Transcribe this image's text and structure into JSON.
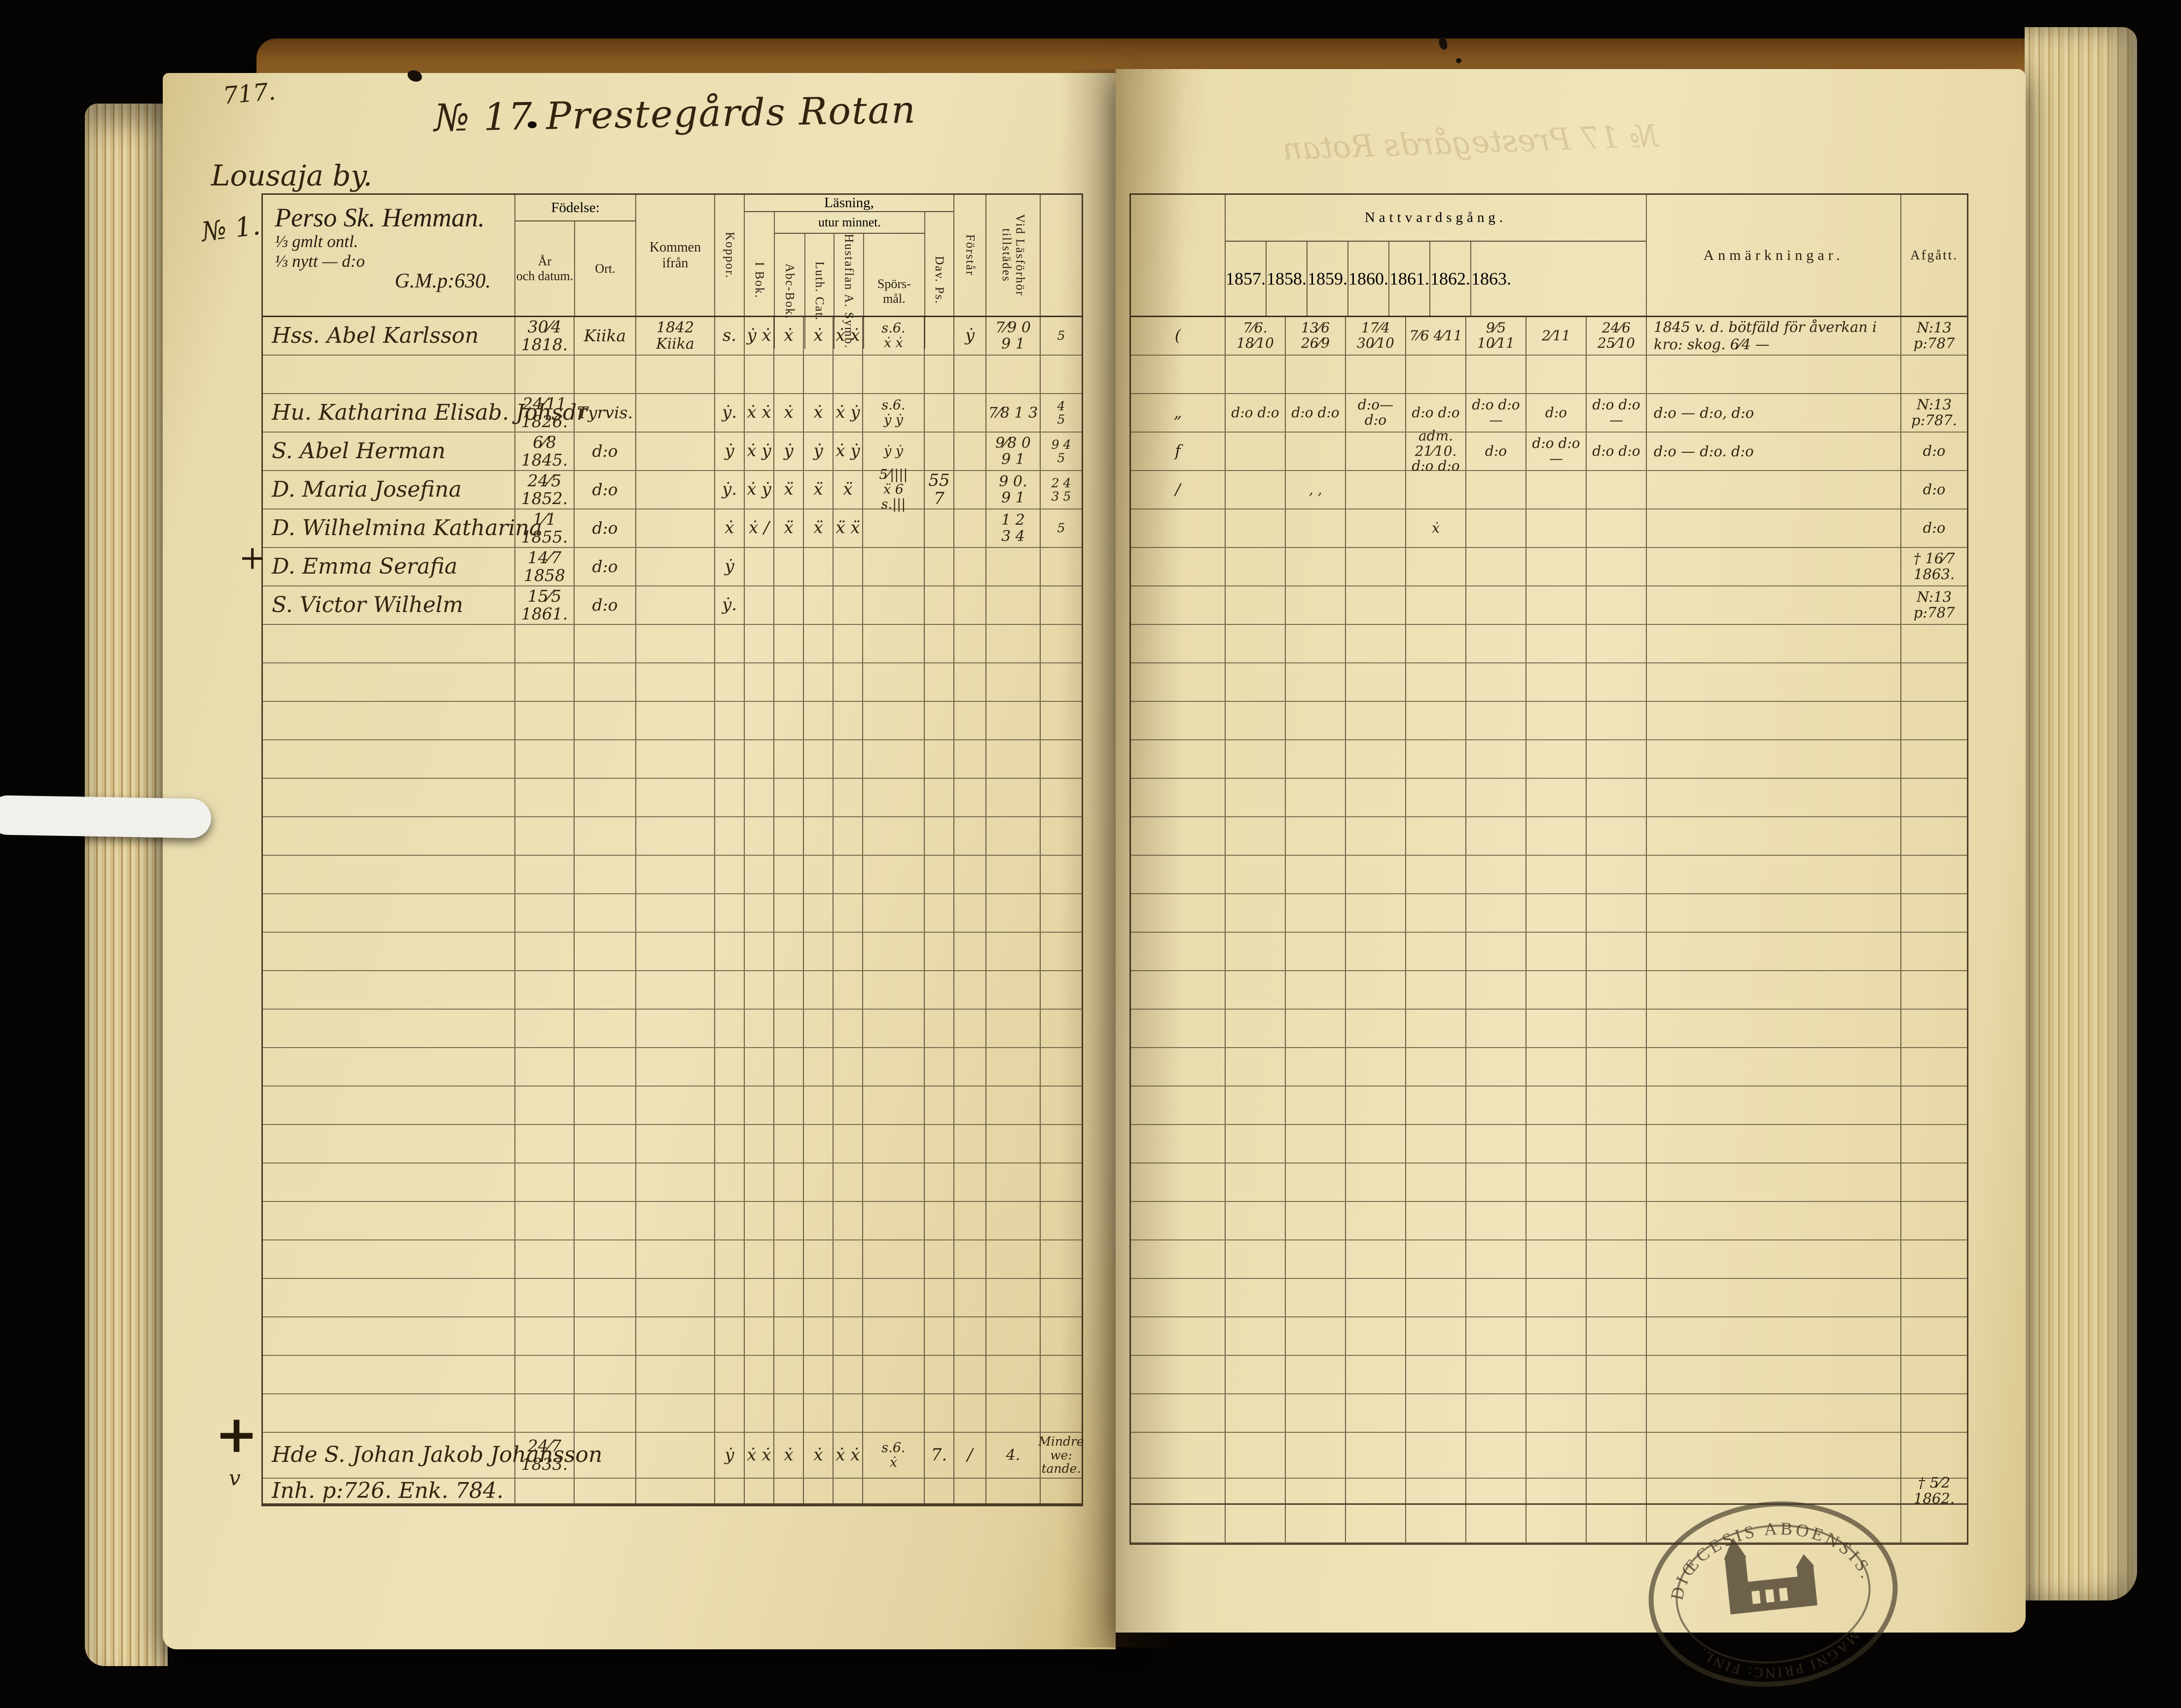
{
  "meta": {
    "page_no": "717.",
    "title": "№ 17 Prestegårds Rotan",
    "bleedthrough": "№ 17 Prestegårds Rotan",
    "village": "Lousaja by.",
    "margin_no": "№ 1.",
    "cross_emma": "+",
    "cross_johan": "+",
    "v_mark": "v"
  },
  "household": {
    "name": "Perso Sk. Hemman.",
    "share1": "⅓ gmlt  ontl.",
    "share2": "⅓ nytt — d:o",
    "ref": "G.M.p:630."
  },
  "headers": {
    "fodelse": "Födelse:",
    "ar_datum": "År\noch datum.",
    "ort": "Ort.",
    "kommen": "Kommen ifrån",
    "koppor": "Koppor.",
    "lasning": "Läsning,",
    "i_bok": "I Bok.",
    "utur": "utur minnet.",
    "abc": "Abc-Bok.",
    "luth": "Luth. Cat.",
    "hustaflan": "Hustaflan A. Symb.",
    "sporsmal": "Spörs-\nmål.",
    "dav": "Dav. Ps.",
    "forstar": "Förstår",
    "vidlas": "Vid Läsförhör\ntillstädes",
    "nattvard": "Nattvardsgång.",
    "years": [
      "1857.",
      "1858.",
      "1859.",
      "1860.",
      "1861.",
      "1862.",
      "1863."
    ],
    "anm": "Anmärkningar.",
    "afgatt": "Afgått."
  },
  "left_rows": [
    [
      "Hss. Abel Karlsson",
      "30⁄4 1818.",
      "Kiika",
      "1842\nKiika",
      "s.",
      "ẏ ẋ",
      "ẋ",
      "ẋ",
      "ẋ ẋ",
      "s.6.\nẋ  ẋ",
      "",
      "ẏ",
      "7⁄9 0\n9 1",
      "5"
    ],
    [
      "",
      "",
      "",
      "",
      "",
      "",
      "",
      "",
      "",
      "",
      "",
      "",
      "",
      ""
    ],
    [
      "Hu. Katharina Elisab. Johsdr",
      "24⁄11 1826.",
      "Tyrvis.",
      "",
      "ẏ.",
      "ẋ ẋ",
      "ẋ",
      "ẋ",
      "ẋ ẏ",
      "s.6.\nẏ  ẏ",
      "",
      "",
      "7⁄8 1 3",
      "4\n5"
    ],
    [
      "S. Abel Herman",
      "6⁄8 1845.",
      "d:o",
      "",
      "ẏ",
      "ẋ ẏ",
      "ẏ",
      "ẏ",
      "ẋ ẏ",
      "ẏ  ẏ",
      "",
      "",
      "9⁄8 0\n9 1",
      "9 4\n5"
    ],
    [
      "D. Maria Josefina",
      "24⁄5 1852.",
      "d:o",
      "",
      "ẏ.",
      "ẋ ẏ",
      "ẍ",
      "ẍ",
      "ẍ",
      "5⁄||||\nẍ  6\ns.|||",
      "55\n7",
      "",
      "9 0.\n9 1",
      "2 4\n3 5"
    ],
    [
      "D. Wilhelmina Katharina",
      "1⁄1 1855.",
      "d:o",
      "",
      "ẋ",
      "ẋ /",
      "ẍ",
      "ẍ",
      "ẍ ẍ",
      "",
      "",
      "",
      "1 2\n3 4",
      "5"
    ],
    [
      "D. Emma Serafia",
      "14⁄7 1858",
      "d:o",
      "",
      "ẏ",
      "",
      "",
      "",
      "",
      "",
      "",
      "",
      "",
      ""
    ],
    [
      "S. Victor Wilhelm",
      "15⁄5 1861.",
      "d:o",
      "",
      "ẏ.",
      "",
      "",
      "",
      "",
      "",
      "",
      "",
      "",
      ""
    ],
    [
      "",
      "",
      "",
      "",
      "",
      "",
      "",
      "",
      "",
      "",
      "",
      "",
      "",
      ""
    ],
    [
      "",
      "",
      "",
      "",
      "",
      "",
      "",
      "",
      "",
      "",
      "",
      "",
      "",
      ""
    ],
    [
      "",
      "",
      "",
      "",
      "",
      "",
      "",
      "",
      "",
      "",
      "",
      "",
      "",
      ""
    ],
    [
      "",
      "",
      "",
      "",
      "",
      "",
      "",
      "",
      "",
      "",
      "",
      "",
      "",
      ""
    ],
    [
      "",
      "",
      "",
      "",
      "",
      "",
      "",
      "",
      "",
      "",
      "",
      "",
      "",
      ""
    ],
    [
      "",
      "",
      "",
      "",
      "",
      "",
      "",
      "",
      "",
      "",
      "",
      "",
      "",
      ""
    ],
    [
      "",
      "",
      "",
      "",
      "",
      "",
      "",
      "",
      "",
      "",
      "",
      "",
      "",
      ""
    ],
    [
      "",
      "",
      "",
      "",
      "",
      "",
      "",
      "",
      "",
      "",
      "",
      "",
      "",
      ""
    ],
    [
      "",
      "",
      "",
      "",
      "",
      "",
      "",
      "",
      "",
      "",
      "",
      "",
      "",
      ""
    ],
    [
      "",
      "",
      "",
      "",
      "",
      "",
      "",
      "",
      "",
      "",
      "",
      "",
      "",
      ""
    ],
    [
      "",
      "",
      "",
      "",
      "",
      "",
      "",
      "",
      "",
      "",
      "",
      "",
      "",
      ""
    ],
    [
      "",
      "",
      "",
      "",
      "",
      "",
      "",
      "",
      "",
      "",
      "",
      "",
      "",
      ""
    ],
    [
      "",
      "",
      "",
      "",
      "",
      "",
      "",
      "",
      "",
      "",
      "",
      "",
      "",
      ""
    ],
    [
      "",
      "",
      "",
      "",
      "",
      "",
      "",
      "",
      "",
      "",
      "",
      "",
      "",
      ""
    ],
    [
      "",
      "",
      "",
      "",
      "",
      "",
      "",
      "",
      "",
      "",
      "",
      "",
      "",
      ""
    ],
    [
      "",
      "",
      "",
      "",
      "",
      "",
      "",
      "",
      "",
      "",
      "",
      "",
      "",
      ""
    ],
    [
      "",
      "",
      "",
      "",
      "",
      "",
      "",
      "",
      "",
      "",
      "",
      "",
      "",
      ""
    ],
    [
      "",
      "",
      "",
      "",
      "",
      "",
      "",
      "",
      "",
      "",
      "",
      "",
      "",
      ""
    ],
    [
      "",
      "",
      "",
      "",
      "",
      "",
      "",
      "",
      "",
      "",
      "",
      "",
      "",
      ""
    ],
    [
      "",
      "",
      "",
      "",
      "",
      "",
      "",
      "",
      "",
      "",
      "",
      "",
      "",
      ""
    ],
    [
      "",
      "",
      "",
      "",
      "",
      "",
      "",
      "",
      "",
      "",
      "",
      "",
      "",
      ""
    ],
    [
      "Hde S. Johan Jakob Johansson",
      "24⁄7 1833.",
      "",
      "",
      "ẏ",
      "ẋ ẋ",
      "ẋ",
      "ẋ",
      "ẋ ẋ",
      "s.6.\nẋ",
      "7.",
      "/",
      "4.",
      "Mindre we: tande."
    ],
    [
      "Inh. p:726.   Enk. 784.",
      "",
      "",
      "",
      "",
      "",
      "",
      "",
      "",
      "",
      "",
      "",
      "",
      ""
    ]
  ],
  "right_rows": [
    [
      "(",
      "7⁄6. 18⁄10",
      "13⁄6  26⁄9",
      "17⁄4  30⁄10",
      "7⁄6  4⁄11",
      "9⁄5  10⁄11",
      "2⁄11",
      "24⁄6  25⁄10",
      "1845 v. d. bötfäld för åverkan i kro: skog.  6⁄4 —",
      "N:13\np:787"
    ],
    [
      "",
      "",
      "",
      "",
      "",
      "",
      "",
      "",
      "",
      ""
    ],
    [
      "„",
      "d:o  d:o",
      "d:o  d:o",
      "d:o— d:o",
      "d:o  d:o",
      "d:o  d:o—",
      "d:o",
      "d:o  d:o—",
      "d:o —  d:o,  d:o",
      "N:13\np:787."
    ],
    [
      "f",
      "",
      "",
      "",
      "adm. 21⁄10.  d:o  d:o",
      "d:o",
      "d:o  d:o—",
      "d:o  d:o",
      "d:o —  d:o.  d:o",
      "d:o"
    ],
    [
      "/",
      "",
      "‚  ‚",
      "",
      "",
      "",
      "",
      "",
      "",
      "d:o"
    ],
    [
      "",
      "",
      "",
      "",
      "ẋ",
      "",
      "",
      "",
      "",
      "d:o"
    ],
    [
      "",
      "",
      "",
      "",
      "",
      "",
      "",
      "",
      "",
      "† 16⁄7 1863."
    ],
    [
      "",
      "",
      "",
      "",
      "",
      "",
      "",
      "",
      "",
      "N:13\np:787"
    ],
    [
      "",
      "",
      "",
      "",
      "",
      "",
      "",
      "",
      "",
      ""
    ],
    [
      "",
      "",
      "",
      "",
      "",
      "",
      "",
      "",
      "",
      ""
    ],
    [
      "",
      "",
      "",
      "",
      "",
      "",
      "",
      "",
      "",
      ""
    ],
    [
      "",
      "",
      "",
      "",
      "",
      "",
      "",
      "",
      "",
      ""
    ],
    [
      "",
      "",
      "",
      "",
      "",
      "",
      "",
      "",
      "",
      ""
    ],
    [
      "",
      "",
      "",
      "",
      "",
      "",
      "",
      "",
      "",
      ""
    ],
    [
      "",
      "",
      "",
      "",
      "",
      "",
      "",
      "",
      "",
      ""
    ],
    [
      "",
      "",
      "",
      "",
      "",
      "",
      "",
      "",
      "",
      ""
    ],
    [
      "",
      "",
      "",
      "",
      "",
      "",
      "",
      "",
      "",
      ""
    ],
    [
      "",
      "",
      "",
      "",
      "",
      "",
      "",
      "",
      "",
      ""
    ],
    [
      "",
      "",
      "",
      "",
      "",
      "",
      "",
      "",
      "",
      ""
    ],
    [
      "",
      "",
      "",
      "",
      "",
      "",
      "",
      "",
      "",
      ""
    ],
    [
      "",
      "",
      "",
      "",
      "",
      "",
      "",
      "",
      "",
      ""
    ],
    [
      "",
      "",
      "",
      "",
      "",
      "",
      "",
      "",
      "",
      ""
    ],
    [
      "",
      "",
      "",
      "",
      "",
      "",
      "",
      "",
      "",
      ""
    ],
    [
      "",
      "",
      "",
      "",
      "",
      "",
      "",
      "",
      "",
      ""
    ],
    [
      "",
      "",
      "",
      "",
      "",
      "",
      "",
      "",
      "",
      ""
    ],
    [
      "",
      "",
      "",
      "",
      "",
      "",
      "",
      "",
      "",
      ""
    ],
    [
      "",
      "",
      "",
      "",
      "",
      "",
      "",
      "",
      "",
      ""
    ],
    [
      "",
      "",
      "",
      "",
      "",
      "",
      "",
      "",
      "",
      ""
    ],
    [
      "",
      "",
      "",
      "",
      "",
      "",
      "",
      "",
      "",
      ""
    ],
    [
      "",
      "",
      "",
      "",
      "",
      "",
      "",
      "",
      "",
      ""
    ],
    [
      "",
      "",
      "",
      "",
      "",
      "",
      "",
      "",
      "",
      "† 5⁄2 1862."
    ],
    [
      "",
      "",
      "",
      "",
      "",
      "",
      "",
      "",
      "",
      ""
    ]
  ],
  "stamp": {
    "top": "DIŒCESIS ABOENSIS.",
    "bottom": "MAGNI PRINC: FINL."
  }
}
